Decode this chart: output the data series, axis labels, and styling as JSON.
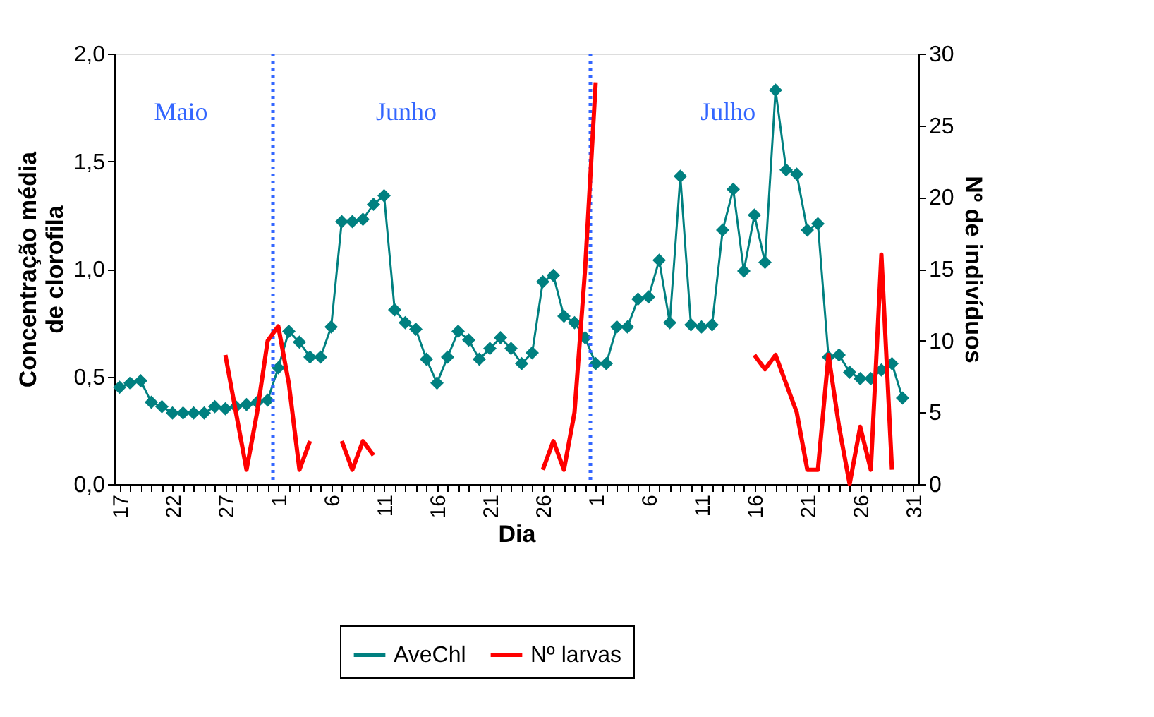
{
  "chart_data": {
    "type": "line",
    "xlabel": "Dia",
    "ylabel": "Concentração média\nde clorofila",
    "y2label": "Nº de indivíduos",
    "categories": [
      "17",
      null,
      null,
      null,
      null,
      "22",
      null,
      null,
      null,
      null,
      "27",
      null,
      null,
      null,
      null,
      "1",
      null,
      null,
      null,
      null,
      "6",
      null,
      null,
      null,
      null,
      "11",
      null,
      null,
      null,
      null,
      "16",
      null,
      null,
      null,
      null,
      "21",
      null,
      null,
      null,
      null,
      "26",
      null,
      null,
      null,
      null,
      "1",
      null,
      null,
      null,
      null,
      "6",
      null,
      null,
      null,
      null,
      "11",
      null,
      null,
      null,
      null,
      "16",
      null,
      null,
      null,
      null,
      "21",
      null,
      null,
      null,
      null,
      "26",
      null,
      null,
      null,
      null,
      "31"
    ],
    "ylim": [
      0,
      2
    ],
    "yticks": [
      {
        "value": 0,
        "label": "0,0"
      },
      {
        "value": 0.5,
        "label": "0,5"
      },
      {
        "value": 1,
        "label": "1,0"
      },
      {
        "value": 1.5,
        "label": "1,5"
      },
      {
        "value": 2,
        "label": "2,0"
      }
    ],
    "y2lim": [
      0,
      30
    ],
    "y2ticks": [
      0,
      5,
      10,
      15,
      20,
      25,
      30
    ],
    "series": [
      {
        "name": "AveChl",
        "color": "#008080",
        "marker": "diamond",
        "values": [
          0.45,
          0.47,
          0.48,
          0.38,
          0.36,
          0.33,
          0.33,
          0.33,
          0.33,
          0.36,
          0.35,
          0.36,
          0.37,
          0.38,
          0.39,
          0.54,
          0.71,
          0.66,
          0.59,
          0.59,
          0.73,
          1.22,
          1.22,
          1.23,
          1.3,
          1.34,
          0.81,
          0.75,
          0.72,
          0.58,
          0.47,
          0.59,
          0.71,
          0.67,
          0.58,
          0.63,
          0.68,
          0.63,
          0.56,
          0.61,
          0.94,
          0.97,
          0.78,
          0.75,
          0.68,
          0.56,
          0.56,
          0.73,
          0.73,
          0.86,
          0.87,
          1.04,
          0.75,
          1.43,
          0.74,
          0.73,
          0.74,
          1.18,
          1.37,
          0.99,
          1.25,
          1.03,
          1.83,
          1.46,
          1.44,
          1.18,
          1.21,
          0.59,
          0.6,
          0.52,
          0.49,
          0.49,
          0.53,
          0.56,
          0.4,
          null
        ]
      },
      {
        "name": "Nº larvas",
        "color": "#ff0000",
        "marker": "none",
        "axis": "y2",
        "values": [
          null,
          null,
          null,
          null,
          null,
          null,
          null,
          null,
          null,
          null,
          9,
          5,
          1,
          5,
          10,
          11,
          7,
          1,
          3,
          null,
          null,
          3,
          1,
          3,
          2,
          null,
          null,
          null,
          null,
          null,
          null,
          null,
          null,
          null,
          null,
          null,
          null,
          null,
          null,
          null,
          1,
          3,
          1,
          5,
          15,
          28,
          null,
          null,
          null,
          null,
          null,
          null,
          null,
          null,
          null,
          null,
          null,
          null,
          null,
          null,
          9,
          8,
          9,
          7,
          5,
          1,
          1,
          9,
          4,
          0,
          4,
          1,
          16,
          1,
          null,
          null
        ]
      }
    ],
    "annotations": [
      "Maio",
      "Junho",
      "Julho"
    ],
    "grid": false,
    "legend": "bottom"
  }
}
